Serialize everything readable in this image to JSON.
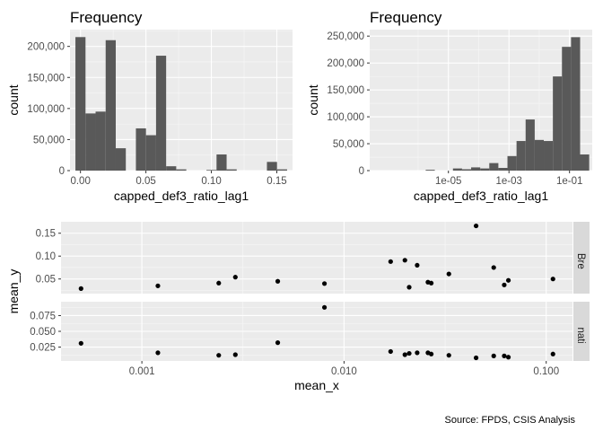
{
  "chart_data": [
    {
      "type": "bar",
      "title": "Frequency",
      "xlabel": "capped_def3_ratio_lag1",
      "ylabel": "count",
      "bin_width": 0.0077,
      "bin_centers": [
        0.0,
        0.0077,
        0.0154,
        0.0231,
        0.0308,
        0.0385,
        0.0462,
        0.0539,
        0.0616,
        0.0693,
        0.077,
        0.0847,
        0.0924,
        0.1001,
        0.1078,
        0.1155,
        0.1232,
        0.1309,
        0.1386,
        0.1463,
        0.154
      ],
      "values": [
        215000,
        92000,
        95000,
        210000,
        36000,
        0,
        68000,
        57000,
        185000,
        7000,
        2000,
        0,
        0,
        1000,
        26000,
        2000,
        0,
        0,
        0,
        14000,
        2000
      ],
      "xlim": [
        -0.008,
        0.162
      ],
      "ylim": [
        0,
        227000
      ],
      "xticks": [
        0.0,
        0.05,
        0.1,
        0.15
      ],
      "xtick_labels": [
        "0.00",
        "0.05",
        "0.10",
        "0.15"
      ],
      "yticks": [
        0,
        50000,
        100000,
        150000,
        200000
      ],
      "ytick_labels": [
        "0",
        "50,000",
        "100,000",
        "150,000",
        "200,000"
      ],
      "bar_color": "#595959",
      "panel_color": "#ebebeb"
    },
    {
      "type": "bar",
      "title": "Frequency",
      "xlabel": "capped_def3_ratio_lag1",
      "ylabel": "count",
      "x_scale": "log10",
      "bin_width_log10": 0.3,
      "bin_centers_log10": [
        -7.4,
        -7.1,
        -6.8,
        -6.5,
        -6.2,
        -5.9,
        -5.6,
        -5.3,
        -5.0,
        -4.7,
        -4.4,
        -4.1,
        -3.8,
        -3.5,
        -3.2,
        -2.9,
        -2.6,
        -2.3,
        -2.0,
        -1.7,
        -1.4,
        -1.1,
        -0.8,
        -0.5
      ],
      "values": [
        0,
        0,
        0,
        0,
        0,
        0,
        1500,
        0,
        0,
        4000,
        2500,
        6000,
        4000,
        14000,
        5000,
        27000,
        55000,
        95000,
        57000,
        55000,
        175000,
        230000,
        248000,
        30000
      ],
      "xlim_log10": [
        -7.6,
        -0.25
      ],
      "ylim": [
        0,
        262000
      ],
      "xticks_log10": [
        -5,
        -3,
        -1
      ],
      "xtick_labels": [
        "1e-05",
        "1e-03",
        "1e-01"
      ],
      "yticks": [
        0,
        50000,
        100000,
        150000,
        200000,
        250000
      ],
      "ytick_labels": [
        "0",
        "50,000",
        "100,000",
        "150,000",
        "200,000",
        "250,000"
      ],
      "bar_color": "#595959",
      "panel_color": "#ebebeb"
    },
    {
      "type": "scatter",
      "xlabel": "mean_x",
      "ylabel": "mean_y",
      "x_scale": "log10",
      "xlim_log10": [
        -3.4,
        -0.87
      ],
      "xticks": [
        0.001,
        0.01,
        0.1
      ],
      "xtick_labels": [
        "0.001",
        "0.010",
        "0.100"
      ],
      "point_color": "#000000",
      "facets": [
        {
          "strip": "Ceiling Breaches",
          "ylim": [
            0.018,
            0.175
          ],
          "yticks": [
            0.05,
            0.1,
            0.15
          ],
          "ytick_labels": [
            "0.05",
            "0.10",
            "0.15"
          ],
          "x": [
            0.0005,
            0.0012,
            0.0024,
            0.0029,
            0.0047,
            0.008,
            0.017,
            0.02,
            0.021,
            0.023,
            0.026,
            0.027,
            0.033,
            0.045,
            0.055,
            0.062,
            0.065,
            0.108
          ],
          "y": [
            0.029,
            0.035,
            0.041,
            0.054,
            0.045,
            0.04,
            0.088,
            0.091,
            0.032,
            0.08,
            0.043,
            0.041,
            0.061,
            0.166,
            0.075,
            0.037,
            0.047,
            0.05
          ]
        },
        {
          "strip": "Terminations",
          "ylim": [
            0.003,
            0.097
          ],
          "yticks": [
            0.025,
            0.05,
            0.075
          ],
          "ytick_labels": [
            "0.025",
            "0.050",
            "0.075"
          ],
          "x": [
            0.0005,
            0.0012,
            0.0024,
            0.0029,
            0.0047,
            0.008,
            0.017,
            0.02,
            0.021,
            0.023,
            0.026,
            0.027,
            0.033,
            0.045,
            0.055,
            0.062,
            0.065,
            0.108
          ],
          "y": [
            0.031,
            0.016,
            0.012,
            0.013,
            0.032,
            0.088,
            0.018,
            0.013,
            0.015,
            0.016,
            0.016,
            0.014,
            0.012,
            0.008,
            0.011,
            0.011,
            0.009,
            0.014
          ]
        }
      ]
    }
  ],
  "caption": "Source: FPDS, CSIS Analysis"
}
